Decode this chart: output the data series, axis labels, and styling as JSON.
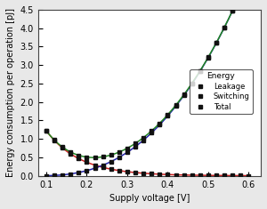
{
  "title": "",
  "xlabel": "Supply voltage [V]",
  "ylabel": "Energy consumption per operation [pJ]",
  "xlim": [
    0.08,
    0.63
  ],
  "ylim": [
    0.0,
    4.5
  ],
  "xticks": [
    0.1,
    0.2,
    0.3,
    0.4,
    0.5,
    0.6
  ],
  "yticks": [
    0.0,
    0.5,
    1.0,
    1.5,
    2.0,
    2.5,
    3.0,
    3.5,
    4.0,
    4.5
  ],
  "leakage_color": "#cc2222",
  "switching_color": "#2222aa",
  "total_color": "#228822",
  "marker_color": "#111111",
  "legend_title": "Energy",
  "legend_labels": [
    "Leakage",
    "Switching",
    "Total"
  ],
  "background_color": "#ffffff",
  "outer_background": "#e8e8e8",
  "figsize": [
    3.0,
    2.35
  ],
  "dpi": 100
}
